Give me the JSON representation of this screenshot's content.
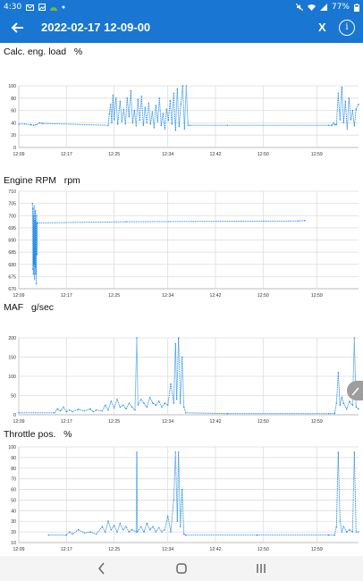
{
  "status_bar": {
    "time": "4:30",
    "battery": "77%",
    "icons": [
      "mail-icon",
      "gallery-icon",
      "android-head-icon",
      "dot-icon",
      "mute-icon",
      "wifi-icon",
      "signal-icon",
      "battery-icon"
    ]
  },
  "app_bar": {
    "title": "2022-02-17 12-09-00",
    "close_label": "X",
    "info_label": "i",
    "icons": [
      "back-arrow-icon",
      "info-icon"
    ]
  },
  "colors": {
    "accent": "#1976d2",
    "series": "#1e88e5",
    "grid": "#dddddd"
  },
  "chart_data": [
    {
      "type": "line",
      "title": "Calc. eng. load",
      "unit": "%",
      "ylim": [
        0,
        100
      ],
      "yticks": [
        0,
        20,
        40,
        60,
        80,
        100
      ],
      "xlim": [
        "12:09",
        "13:06"
      ],
      "xticks": [
        "12:09",
        "12:17",
        "12:25",
        "12:34",
        "12:42",
        "12:50",
        "12:59"
      ],
      "grid": true,
      "series": [
        {
          "values": [
            [
              0,
              38
            ],
            [
              1,
              38
            ],
            [
              2,
              37
            ],
            [
              2.5,
              36
            ],
            [
              3,
              37
            ],
            [
              3.5,
              40
            ],
            [
              4,
              39
            ],
            [
              15,
              36
            ],
            [
              15.2,
              55
            ],
            [
              15.4,
              70
            ],
            [
              15.6,
              40
            ],
            [
              15.8,
              85
            ],
            [
              16,
              45
            ],
            [
              16.3,
              80
            ],
            [
              16.6,
              38
            ],
            [
              17,
              75
            ],
            [
              17.3,
              42
            ],
            [
              17.6,
              62
            ],
            [
              17.9,
              38
            ],
            [
              18.2,
              80
            ],
            [
              18.5,
              50
            ],
            [
              18.8,
              92
            ],
            [
              19.1,
              40
            ],
            [
              19.4,
              60
            ],
            [
              19.7,
              35
            ],
            [
              20,
              78
            ],
            [
              20.3,
              44
            ],
            [
              20.6,
              83
            ],
            [
              20.9,
              36
            ],
            [
              21.2,
              65
            ],
            [
              21.5,
              40
            ],
            [
              21.8,
              72
            ],
            [
              22.1,
              38
            ],
            [
              22.4,
              58
            ],
            [
              22.7,
              32
            ],
            [
              23,
              68
            ],
            [
              23.3,
              42
            ],
            [
              23.6,
              80
            ],
            [
              23.9,
              36
            ],
            [
              24.2,
              55
            ],
            [
              24.5,
              30
            ],
            [
              24.8,
              62
            ],
            [
              25.1,
              44
            ],
            [
              25.4,
              76
            ],
            [
              25.7,
              38
            ],
            [
              26,
              88
            ],
            [
              26.3,
              28
            ],
            [
              26.6,
              95
            ],
            [
              26.9,
              34
            ],
            [
              27.2,
              70
            ],
            [
              27.5,
              100
            ],
            [
              27.8,
              30
            ],
            [
              28.1,
              100
            ],
            [
              28.4,
              36
            ],
            [
              28.7,
              36
            ],
            [
              35,
              36
            ],
            [
              52,
              36
            ],
            [
              52.5,
              36
            ],
            [
              52.8,
              40
            ],
            [
              53,
              37
            ],
            [
              53.3,
              37
            ],
            [
              53.6,
              88
            ],
            [
              53.9,
              45
            ],
            [
              54.2,
              98
            ],
            [
              54.5,
              40
            ],
            [
              54.8,
              75
            ],
            [
              55.1,
              30
            ],
            [
              55.4,
              80
            ],
            [
              55.7,
              45
            ],
            [
              56,
              60
            ],
            [
              56.3,
              35
            ],
            [
              56.6,
              62
            ],
            [
              57,
              70
            ]
          ]
        }
      ]
    },
    {
      "type": "line",
      "title": "Engine RPM",
      "unit": "rpm",
      "ylim": [
        670,
        710
      ],
      "yticks": [
        670,
        675,
        680,
        685,
        690,
        695,
        700,
        705,
        710
      ],
      "xlim": [
        "12:09",
        "13:06"
      ],
      "xticks": [
        "12:09",
        "12:17",
        "12:25",
        "12:34",
        "12:42",
        "12:50",
        "12:59"
      ],
      "grid": true,
      "series": [
        {
          "values": [
            [
              2.3,
              705
            ],
            [
              2.35,
              678
            ],
            [
              2.4,
              703
            ],
            [
              2.45,
              676
            ],
            [
              2.5,
              700
            ],
            [
              2.55,
              680
            ],
            [
              2.6,
              704
            ],
            [
              2.65,
              674
            ],
            [
              2.7,
              698
            ],
            [
              2.75,
              679
            ],
            [
              2.8,
              702
            ],
            [
              2.85,
              676
            ],
            [
              2.9,
              697
            ],
            [
              2.95,
              672
            ],
            [
              3.0,
              700
            ],
            [
              3.05,
              684
            ],
            [
              3.1,
              697
            ],
            [
              3.15,
              697
            ],
            [
              18,
              697.5
            ],
            [
              47,
              697.8
            ],
            [
              48,
              698
            ]
          ]
        }
      ]
    },
    {
      "type": "line",
      "title": "MAF",
      "unit": "g/sec",
      "ylim": [
        0,
        200
      ],
      "yticks": [
        0,
        50,
        100,
        150,
        200
      ],
      "xlim": [
        "12:09",
        "13:06"
      ],
      "xticks": [
        "12:09",
        "12:17",
        "12:25",
        "12:34",
        "12:42",
        "12:50",
        "12:59"
      ],
      "grid": true,
      "series": [
        {
          "values": [
            [
              0,
              5
            ],
            [
              6,
              5
            ],
            [
              6.5,
              15
            ],
            [
              7,
              10
            ],
            [
              7.5,
              20
            ],
            [
              8,
              8
            ],
            [
              8.5,
              12
            ],
            [
              9,
              8
            ],
            [
              10,
              14
            ],
            [
              11,
              10
            ],
            [
              12,
              15
            ],
            [
              12.5,
              8
            ],
            [
              13,
              12
            ],
            [
              14,
              10
            ],
            [
              14.5,
              25
            ],
            [
              15,
              12
            ],
            [
              15.5,
              35
            ],
            [
              16,
              18
            ],
            [
              16.5,
              40
            ],
            [
              17,
              20
            ],
            [
              17.5,
              25
            ],
            [
              18,
              15
            ],
            [
              18.5,
              30
            ],
            [
              19,
              20
            ],
            [
              19.5,
              12
            ],
            [
              19.8,
              200
            ],
            [
              20,
              25
            ],
            [
              20.5,
              40
            ],
            [
              21,
              30
            ],
            [
              21.5,
              20
            ],
            [
              22,
              45
            ],
            [
              22.5,
              30
            ],
            [
              23,
              25
            ],
            [
              23.5,
              35
            ],
            [
              24,
              20
            ],
            [
              24.5,
              30
            ],
            [
              25,
              25
            ],
            [
              25.5,
              80
            ],
            [
              26,
              30
            ],
            [
              26.3,
              185
            ],
            [
              26.5,
              40
            ],
            [
              26.8,
              220
            ],
            [
              27.1,
              30
            ],
            [
              27.4,
              150
            ],
            [
              27.7,
              20
            ],
            [
              28,
              5
            ],
            [
              35,
              3
            ],
            [
              52,
              3
            ],
            [
              53,
              3
            ],
            [
              53.3,
              30
            ],
            [
              53.6,
              110
            ],
            [
              53.9,
              25
            ],
            [
              54.2,
              45
            ],
            [
              54.5,
              30
            ],
            [
              55,
              15
            ],
            [
              55.5,
              35
            ],
            [
              56,
              25
            ],
            [
              56.3,
              200
            ],
            [
              56.6,
              20
            ],
            [
              57,
              15
            ]
          ]
        }
      ]
    },
    {
      "type": "line",
      "title": "Throttle pos.",
      "unit": "%",
      "ylim": [
        10,
        100
      ],
      "yticks": [
        10,
        20,
        30,
        40,
        50,
        60,
        70,
        80,
        90,
        100
      ],
      "xlim": [
        "12:09",
        "13:06"
      ],
      "xticks": [
        "12:09",
        "12:17",
        "12:25",
        "12:34",
        "12:42",
        "12:50",
        "12:59"
      ],
      "grid": true,
      "series": [
        {
          "values": [
            [
              5,
              17
            ],
            [
              8,
              17
            ],
            [
              8.5,
              20
            ],
            [
              9,
              18
            ],
            [
              10,
              22
            ],
            [
              11,
              19
            ],
            [
              12,
              20
            ],
            [
              13,
              18
            ],
            [
              14,
              25
            ],
            [
              14.5,
              20
            ],
            [
              15,
              30
            ],
            [
              15.5,
              22
            ],
            [
              16,
              26
            ],
            [
              16.5,
              20
            ],
            [
              17,
              28
            ],
            [
              17.5,
              22
            ],
            [
              18,
              25
            ],
            [
              18.5,
              20
            ],
            [
              19,
              22
            ],
            [
              19.7,
              20
            ],
            [
              19.8,
              95
            ],
            [
              19.9,
              20
            ],
            [
              20.5,
              25
            ],
            [
              21,
              20
            ],
            [
              21.5,
              28
            ],
            [
              22,
              22
            ],
            [
              22.5,
              25
            ],
            [
              23,
              20
            ],
            [
              23.5,
              24
            ],
            [
              24,
              20
            ],
            [
              24.5,
              22
            ],
            [
              25,
              35
            ],
            [
              25.5,
              20
            ],
            [
              26,
              50
            ],
            [
              26.3,
              95
            ],
            [
              26.6,
              30
            ],
            [
              26.8,
              95
            ],
            [
              27.1,
              25
            ],
            [
              27.4,
              60
            ],
            [
              27.7,
              18
            ],
            [
              28,
              17
            ],
            [
              40,
              17
            ],
            [
              52,
              17
            ],
            [
              53,
              17
            ],
            [
              53.3,
              25
            ],
            [
              53.6,
              95
            ],
            [
              53.9,
              30
            ],
            [
              54.2,
              20
            ],
            [
              54.5,
              25
            ],
            [
              55,
              20
            ],
            [
              55.5,
              22
            ],
            [
              56,
              20
            ],
            [
              56.3,
              95
            ],
            [
              56.6,
              20
            ],
            [
              57,
              20
            ]
          ]
        }
      ]
    }
  ]
}
